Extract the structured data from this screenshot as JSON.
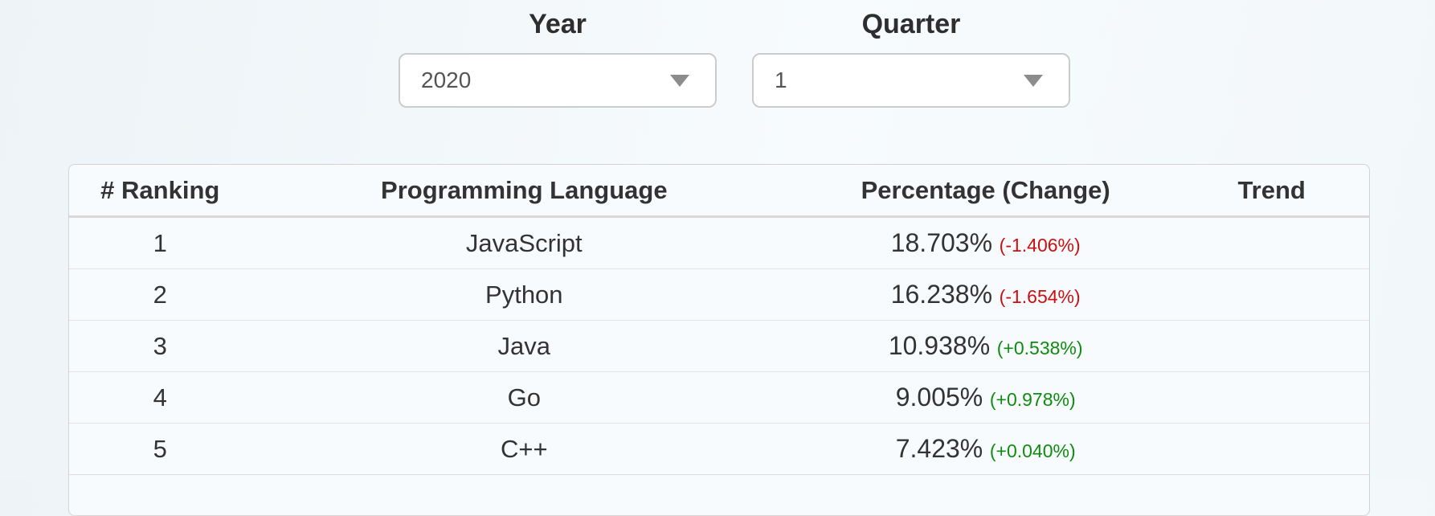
{
  "filters": {
    "year": {
      "label": "Year",
      "value": "2020"
    },
    "quarter": {
      "label": "Quarter",
      "value": "1"
    }
  },
  "table": {
    "columns": [
      "# Ranking",
      "Programming Language",
      "Percentage (Change)",
      "Trend"
    ],
    "rows": [
      {
        "rank": "1",
        "language": "JavaScript",
        "percentage": "18.703%",
        "change": "-1.406%",
        "trend": ""
      },
      {
        "rank": "2",
        "language": "Python",
        "percentage": "16.238%",
        "change": "-1.654%",
        "trend": ""
      },
      {
        "rank": "3",
        "language": "Java",
        "percentage": "10.938%",
        "change": "+0.538%",
        "trend": ""
      },
      {
        "rank": "4",
        "language": "Go",
        "percentage": "9.005%",
        "change": "+0.978%",
        "trend": ""
      },
      {
        "rank": "5",
        "language": "C++",
        "percentage": "7.423%",
        "change": "+0.040%",
        "trend": ""
      }
    ]
  },
  "colors": {
    "negative_change": "#cc0f0f",
    "positive_change": "#0f8c0f"
  }
}
